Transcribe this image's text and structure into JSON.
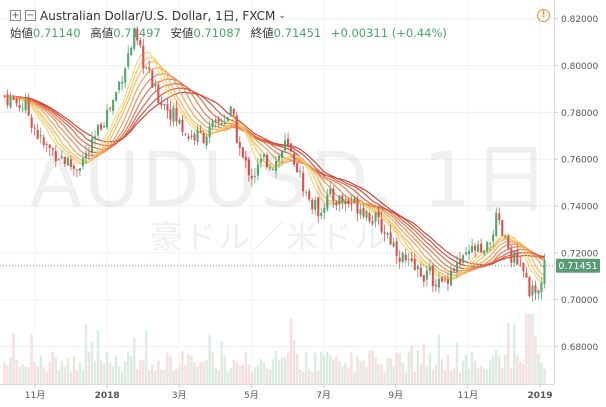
{
  "legend": {
    "collapse_icon": "minus-box-icon",
    "expand_icon": "plus-box-icon",
    "symbol_title": "Australian Dollar/U.S. Dollar, 1日, FXCM",
    "dropdown_icon": "chevron-down-icon",
    "open_label": "始値",
    "open_value": "0.71140",
    "high_label": "高値",
    "high_value": "0.71497",
    "low_label": "安値",
    "low_value": "0.71087",
    "close_label": "終値",
    "close_value": "0.71451",
    "change": "+0.00311 (+0.44%)"
  },
  "alert_icon": "exclamation-circle-icon",
  "watermark": {
    "symbol": "AUDUSD, 1日",
    "description": "豪ドル／米ドル"
  },
  "colors": {
    "up": "#53a86e",
    "down": "#e05050",
    "ribbon_top": "#c0392b",
    "ribbon_bottom": "#f6c24a",
    "price_tag": "#5b9a77",
    "price_line": "#6aa887"
  },
  "chart_data": {
    "type": "candlestick",
    "title": "Australian Dollar/U.S. Dollar, 1日, FXCM",
    "ylim": [
      0.664,
      0.828
    ],
    "y_ticks": [
      "0.82000",
      "0.80000",
      "0.78000",
      "0.76000",
      "0.74000",
      "0.72000",
      "0.70000",
      "0.68000"
    ],
    "x_ticks": [
      "11月",
      "2018",
      "3月",
      "5月",
      "7月",
      "9月",
      "11月",
      "2019"
    ],
    "current_price": "0.71451",
    "price_path": [
      [
        0,
        0.787
      ],
      [
        0.04,
        0.782
      ],
      [
        0.07,
        0.766
      ],
      [
        0.1,
        0.762
      ],
      [
        0.13,
        0.756
      ],
      [
        0.16,
        0.764
      ],
      [
        0.18,
        0.776
      ],
      [
        0.2,
        0.784
      ],
      [
        0.22,
        0.798
      ],
      [
        0.24,
        0.812
      ],
      [
        0.26,
        0.8
      ],
      [
        0.28,
        0.788
      ],
      [
        0.31,
        0.78
      ],
      [
        0.34,
        0.77
      ],
      [
        0.37,
        0.77
      ],
      [
        0.4,
        0.776
      ],
      [
        0.42,
        0.78
      ],
      [
        0.44,
        0.76
      ],
      [
        0.46,
        0.753
      ],
      [
        0.48,
        0.76
      ],
      [
        0.5,
        0.758
      ],
      [
        0.52,
        0.766
      ],
      [
        0.54,
        0.758
      ],
      [
        0.56,
        0.744
      ],
      [
        0.58,
        0.738
      ],
      [
        0.6,
        0.744
      ],
      [
        0.63,
        0.742
      ],
      [
        0.66,
        0.74
      ],
      [
        0.69,
        0.733
      ],
      [
        0.71,
        0.728
      ],
      [
        0.73,
        0.72
      ],
      [
        0.75,
        0.714
      ],
      [
        0.77,
        0.712
      ],
      [
        0.79,
        0.71
      ],
      [
        0.81,
        0.706
      ],
      [
        0.83,
        0.714
      ],
      [
        0.85,
        0.716
      ],
      [
        0.87,
        0.722
      ],
      [
        0.89,
        0.718
      ],
      [
        0.91,
        0.734
      ],
      [
        0.93,
        0.723
      ],
      [
        0.95,
        0.715
      ],
      [
        0.97,
        0.706
      ],
      [
        0.985,
        0.699
      ],
      [
        1.0,
        0.7145
      ]
    ]
  }
}
